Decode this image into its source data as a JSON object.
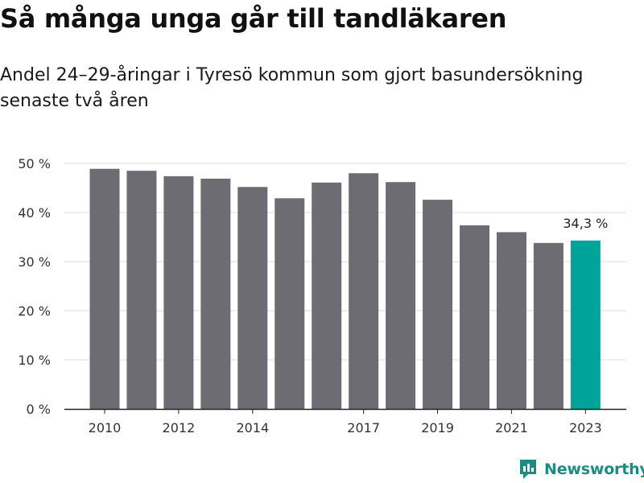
{
  "header": {
    "title": "Så många unga går till tandläkaren",
    "subtitle": "Andel 24–29-åringar i Tyresö kommun som gjort basundersökning senaste två åren"
  },
  "branding": {
    "logo_text": "Newsworthy",
    "logo_color": "#1b8c82"
  },
  "colors": {
    "bar": "#6d6c72",
    "highlight": "#00a39a",
    "grid": "#dddddd",
    "axis": "#222222"
  },
  "chart_data": {
    "type": "bar",
    "categories": [
      "2010",
      "2011",
      "2012",
      "2013",
      "2014",
      "2015",
      "2016",
      "2017",
      "2018",
      "2019",
      "2020",
      "2021",
      "2022",
      "2023"
    ],
    "x_tick_labels": [
      "2010",
      "",
      "2012",
      "",
      "2014",
      "",
      "",
      "2017",
      "",
      "2019",
      "",
      "2021",
      "",
      "2023"
    ],
    "values": [
      48.9,
      48.5,
      47.4,
      46.9,
      45.2,
      42.9,
      46.1,
      48.0,
      46.2,
      42.6,
      37.4,
      36.0,
      33.8,
      34.3
    ],
    "highlight_index": 13,
    "annotation": "34,3 %",
    "y_ticks": [
      0,
      10,
      20,
      30,
      40,
      50
    ],
    "y_tick_labels": [
      "0 %",
      "10 %",
      "20 %",
      "30 %",
      "40 %",
      "50 %"
    ],
    "ylim": [
      0,
      50
    ],
    "grid": true
  }
}
